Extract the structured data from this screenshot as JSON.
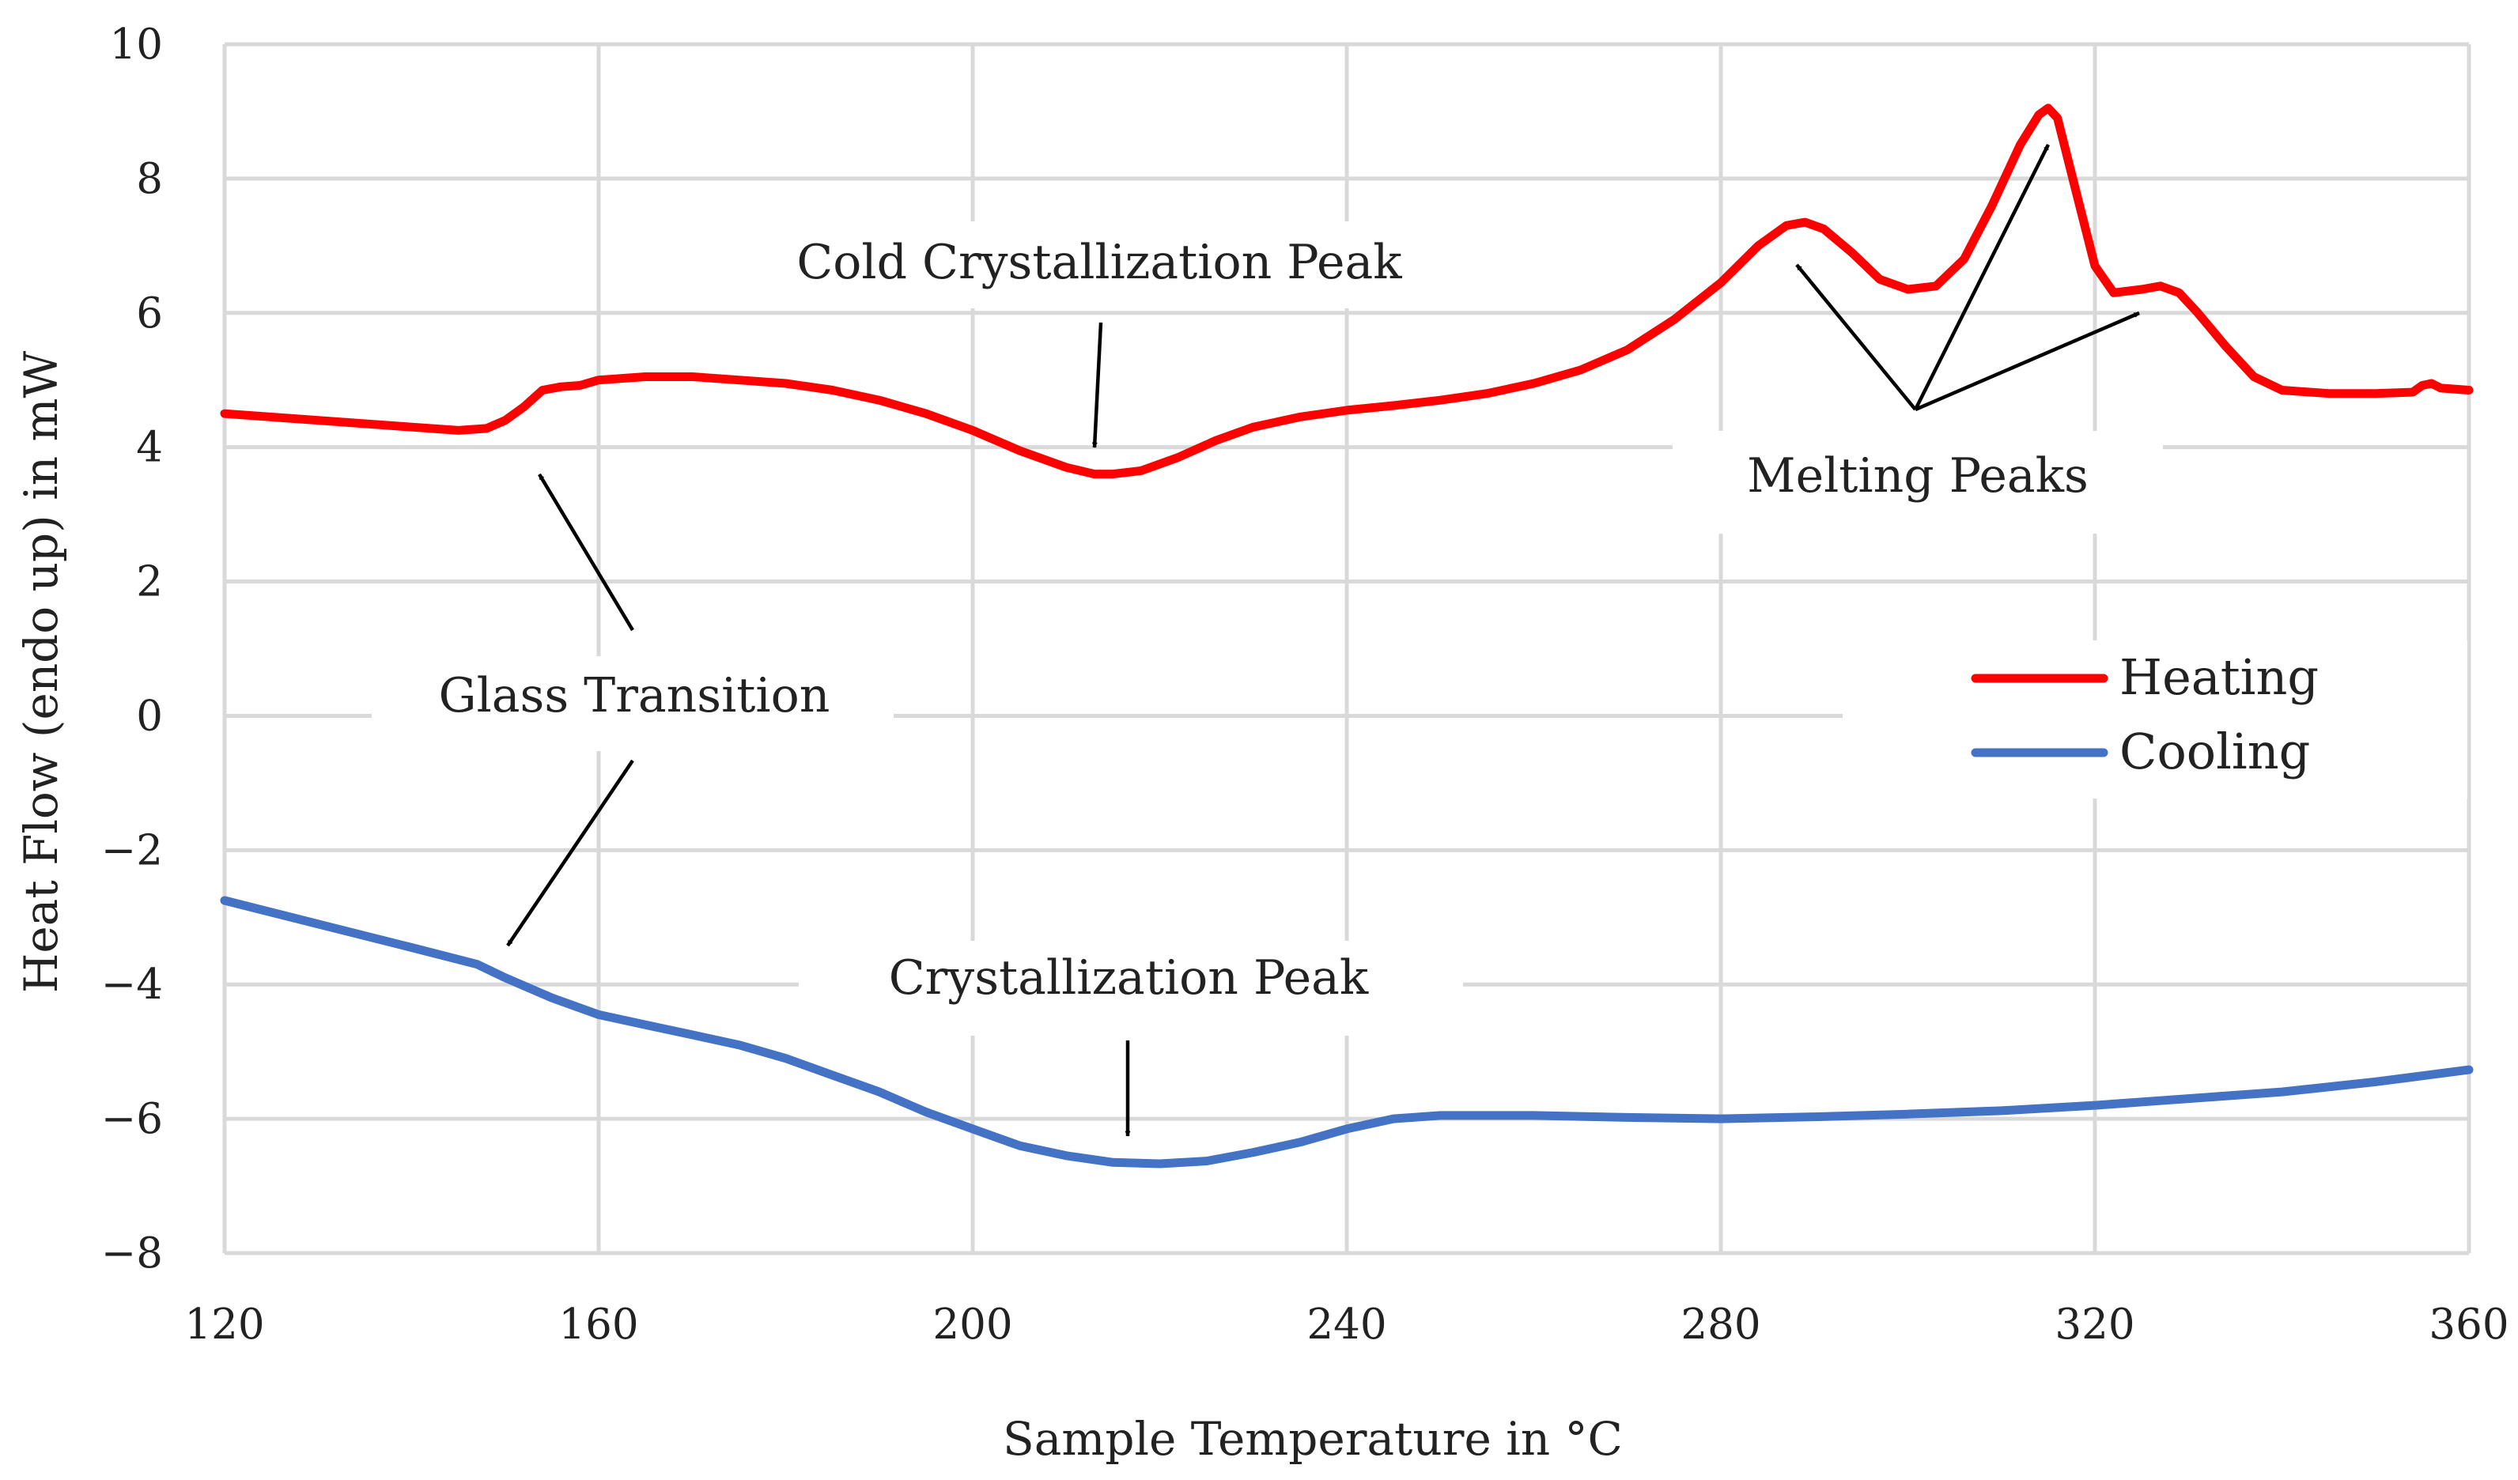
{
  "chart_data": {
    "type": "line",
    "title": "",
    "xlabel": "Sample Temperature in °C",
    "ylabel": "Heat Flow (endo up) in mW",
    "xlim": [
      120,
      360
    ],
    "ylim": [
      -8,
      10
    ],
    "xticks": [
      120,
      160,
      200,
      240,
      280,
      320,
      360
    ],
    "yticks": [
      -8,
      -6,
      -4,
      -2,
      0,
      2,
      4,
      6,
      8,
      10
    ],
    "ytick_labels": [
      "−8",
      "−6",
      "−4",
      "−2",
      "0",
      "2",
      "4",
      "6",
      "8",
      "10"
    ],
    "grid": true,
    "legend_position": "right",
    "series": [
      {
        "name": "Heating",
        "color": "#ff0000",
        "points": [
          [
            120,
            4.5
          ],
          [
            130,
            4.4
          ],
          [
            140,
            4.3
          ],
          [
            145,
            4.25
          ],
          [
            148,
            4.28
          ],
          [
            150,
            4.4
          ],
          [
            152,
            4.6
          ],
          [
            154,
            4.85
          ],
          [
            156,
            4.9
          ],
          [
            158,
            4.92
          ],
          [
            160,
            5.0
          ],
          [
            165,
            5.05
          ],
          [
            170,
            5.05
          ],
          [
            175,
            5.0
          ],
          [
            180,
            4.95
          ],
          [
            185,
            4.85
          ],
          [
            190,
            4.7
          ],
          [
            195,
            4.5
          ],
          [
            200,
            4.25
          ],
          [
            205,
            3.95
          ],
          [
            210,
            3.7
          ],
          [
            213,
            3.6
          ],
          [
            215,
            3.6
          ],
          [
            218,
            3.65
          ],
          [
            222,
            3.85
          ],
          [
            226,
            4.1
          ],
          [
            230,
            4.3
          ],
          [
            235,
            4.45
          ],
          [
            240,
            4.55
          ],
          [
            245,
            4.62
          ],
          [
            250,
            4.7
          ],
          [
            255,
            4.8
          ],
          [
            260,
            4.95
          ],
          [
            265,
            5.15
          ],
          [
            270,
            5.45
          ],
          [
            275,
            5.9
          ],
          [
            280,
            6.45
          ],
          [
            284,
            7.0
          ],
          [
            287,
            7.3
          ],
          [
            289,
            7.35
          ],
          [
            291,
            7.25
          ],
          [
            294,
            6.9
          ],
          [
            297,
            6.5
          ],
          [
            300,
            6.35
          ],
          [
            303,
            6.4
          ],
          [
            306,
            6.8
          ],
          [
            309,
            7.6
          ],
          [
            312,
            8.5
          ],
          [
            314,
            8.95
          ],
          [
            315,
            9.05
          ],
          [
            316,
            8.9
          ],
          [
            318,
            7.8
          ],
          [
            320,
            6.7
          ],
          [
            322,
            6.3
          ],
          [
            325,
            6.35
          ],
          [
            327,
            6.4
          ],
          [
            329,
            6.3
          ],
          [
            331,
            6.0
          ],
          [
            334,
            5.5
          ],
          [
            337,
            5.05
          ],
          [
            340,
            4.85
          ],
          [
            345,
            4.8
          ],
          [
            350,
            4.8
          ],
          [
            354,
            4.82
          ],
          [
            355,
            4.92
          ],
          [
            356,
            4.95
          ],
          [
            357,
            4.88
          ],
          [
            360,
            4.85
          ]
        ]
      },
      {
        "name": "Cooling",
        "color": "#4472c4",
        "points": [
          [
            120,
            -2.75
          ],
          [
            130,
            -3.1
          ],
          [
            140,
            -3.45
          ],
          [
            147,
            -3.7
          ],
          [
            150,
            -3.9
          ],
          [
            155,
            -4.2
          ],
          [
            160,
            -4.45
          ],
          [
            165,
            -4.6
          ],
          [
            170,
            -4.75
          ],
          [
            175,
            -4.9
          ],
          [
            180,
            -5.1
          ],
          [
            185,
            -5.35
          ],
          [
            190,
            -5.6
          ],
          [
            195,
            -5.9
          ],
          [
            200,
            -6.15
          ],
          [
            205,
            -6.4
          ],
          [
            210,
            -6.55
          ],
          [
            215,
            -6.65
          ],
          [
            220,
            -6.67
          ],
          [
            225,
            -6.63
          ],
          [
            230,
            -6.5
          ],
          [
            235,
            -6.35
          ],
          [
            240,
            -6.15
          ],
          [
            245,
            -6.0
          ],
          [
            250,
            -5.95
          ],
          [
            260,
            -5.95
          ],
          [
            270,
            -5.98
          ],
          [
            280,
            -6.0
          ],
          [
            290,
            -5.97
          ],
          [
            300,
            -5.93
          ],
          [
            310,
            -5.88
          ],
          [
            320,
            -5.8
          ],
          [
            330,
            -5.7
          ],
          [
            340,
            -5.6
          ],
          [
            350,
            -5.45
          ],
          [
            360,
            -5.27
          ]
        ]
      }
    ],
    "annotations": [
      {
        "text": "Cold Crystallization Peak"
      },
      {
        "text": "Melting Peaks"
      },
      {
        "text": "Glass Transition"
      },
      {
        "text": "Crystallization Peak"
      }
    ]
  }
}
